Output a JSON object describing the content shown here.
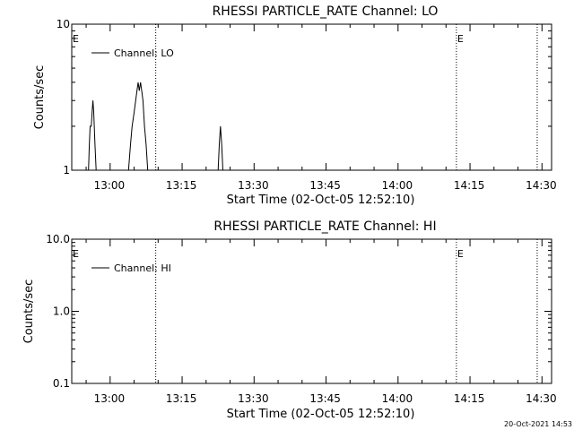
{
  "footer": {
    "timestamp": "20-Oct-2021 14:53"
  },
  "chart_data": [
    {
      "type": "line",
      "title": "RHESSI PARTICLE_RATE Channel: LO",
      "xlabel": "Start Time (02-Oct-05 12:52:10)",
      "ylabel": "Counts/sec",
      "yscale": "log",
      "ylim": [
        1,
        10
      ],
      "xlim": [
        "12:52:10",
        "14:32:10"
      ],
      "x_ticks": [
        "13:00",
        "13:15",
        "13:30",
        "13:45",
        "14:00",
        "14:15",
        "14:30"
      ],
      "y_ticks": [
        "1",
        "10"
      ],
      "grid": false,
      "legend_position": "top-left",
      "series": [
        {
          "name": "Channel: LO",
          "x": [
            "12:55:40",
            "12:55:50",
            "12:56:00",
            "12:56:15",
            "12:56:25",
            "12:56:35",
            "12:56:45",
            "12:57:00",
            "12:57:15",
            "13:04:00",
            "13:04:25",
            "13:04:45",
            "13:05:10",
            "13:05:30",
            "13:05:45",
            "13:06:00",
            "13:06:15",
            "13:06:30",
            "13:06:45",
            "13:07:00",
            "13:07:20",
            "13:07:40",
            "13:08:00",
            "13:08:30",
            "13:22:40",
            "13:22:55",
            "13:23:10",
            "13:23:25",
            "13:23:40"
          ],
          "y": [
            1.0,
            1.5,
            2.0,
            2.0,
            2.5,
            3.0,
            2.5,
            1.5,
            1.0,
            1.0,
            1.5,
            2.0,
            2.5,
            3.0,
            3.5,
            4.0,
            3.5,
            4.0,
            3.5,
            3.0,
            2.0,
            1.5,
            1.0,
            1.0,
            1.0,
            1.5,
            2.0,
            1.5,
            1.0
          ]
        }
      ],
      "markers": [
        {
          "label": "E",
          "time": "12:52:10",
          "style": "text"
        },
        {
          "label": "",
          "time": "13:09:40",
          "style": "dotted"
        },
        {
          "label": "E",
          "time": "14:12:20",
          "style": "both"
        },
        {
          "label": "",
          "time": "14:29:10",
          "style": "dotted"
        }
      ]
    },
    {
      "type": "line",
      "title": "RHESSI PARTICLE_RATE Channel: HI",
      "xlabel": "Start Time (02-Oct-05 12:52:10)",
      "ylabel": "Counts/sec",
      "yscale": "log",
      "ylim": [
        0.1,
        10
      ],
      "xlim": [
        "12:52:10",
        "14:32:10"
      ],
      "x_ticks": [
        "13:00",
        "13:15",
        "13:30",
        "13:45",
        "14:00",
        "14:15",
        "14:30"
      ],
      "y_ticks": [
        "0.1",
        "1.0",
        "10.0"
      ],
      "grid": false,
      "legend_position": "top-left",
      "series": [
        {
          "name": "Channel: HI",
          "x": [],
          "y": []
        }
      ],
      "markers": [
        {
          "label": "E",
          "time": "12:52:10",
          "style": "text"
        },
        {
          "label": "",
          "time": "13:09:40",
          "style": "dotted"
        },
        {
          "label": "E",
          "time": "14:12:20",
          "style": "both"
        },
        {
          "label": "",
          "time": "14:29:10",
          "style": "dotted"
        }
      ]
    }
  ]
}
